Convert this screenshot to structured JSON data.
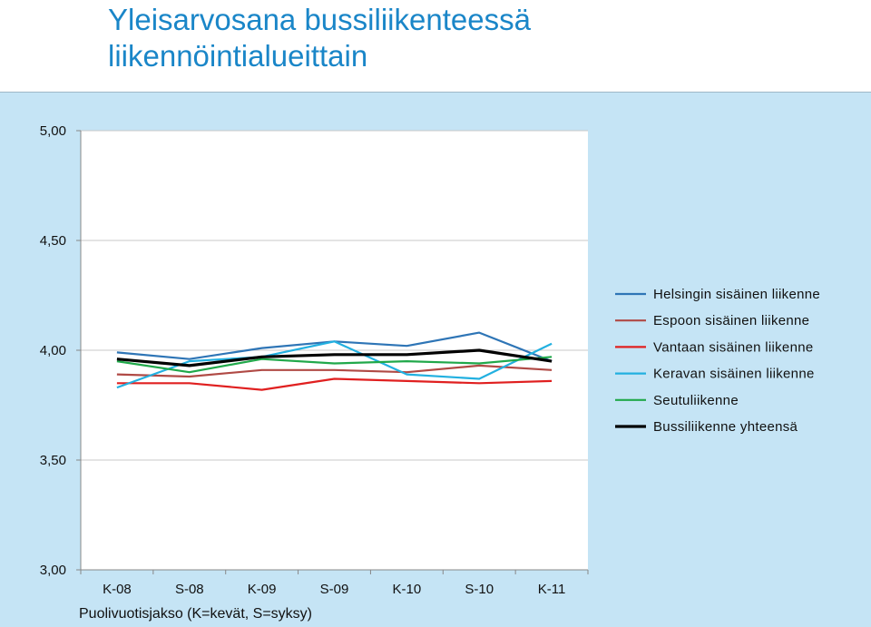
{
  "title_line1": "Yleisarvosana bussiliikenteessä",
  "title_line2": "liikennöintialueittain",
  "chart_data": {
    "type": "line",
    "categories": [
      "K-08",
      "S-08",
      "K-09",
      "S-09",
      "K-10",
      "S-10",
      "K-11"
    ],
    "xlabel": "Puolivuotisjakso (K=kevät, S=syksy)",
    "ylabel": "",
    "ylim": [
      3.0,
      5.0
    ],
    "yticks": [
      "3,00",
      "3,50",
      "4,00",
      "4,50",
      "5,00"
    ],
    "grid": "horizontal",
    "legend_position": "right",
    "series": [
      {
        "name": "Helsingin sisäinen liikenne",
        "color": "#2e75b6",
        "width": 2.2,
        "values": [
          3.99,
          3.96,
          4.01,
          4.04,
          4.02,
          4.08,
          3.95
        ]
      },
      {
        "name": "Espoon sisäinen liikenne",
        "color": "#b04a45",
        "width": 2.2,
        "values": [
          3.89,
          3.88,
          3.91,
          3.91,
          3.9,
          3.93,
          3.91
        ]
      },
      {
        "name": "Vantaan sisäinen liikenne",
        "color": "#e02020",
        "width": 2.2,
        "values": [
          3.85,
          3.85,
          3.82,
          3.87,
          3.86,
          3.85,
          3.86
        ]
      },
      {
        "name": "Keravan sisäinen liikenne",
        "color": "#22b0e0",
        "width": 2.2,
        "values": [
          3.83,
          3.95,
          3.97,
          4.04,
          3.89,
          3.87,
          4.03
        ]
      },
      {
        "name": "Seutuliikenne",
        "color": "#20a84a",
        "width": 2.2,
        "values": [
          3.95,
          3.9,
          3.96,
          3.94,
          3.95,
          3.94,
          3.97
        ]
      },
      {
        "name": "Bussiliikenne yhteensä",
        "color": "#000000",
        "width": 3.2,
        "values": [
          3.96,
          3.93,
          3.97,
          3.98,
          3.98,
          4.0,
          3.95
        ]
      }
    ]
  }
}
